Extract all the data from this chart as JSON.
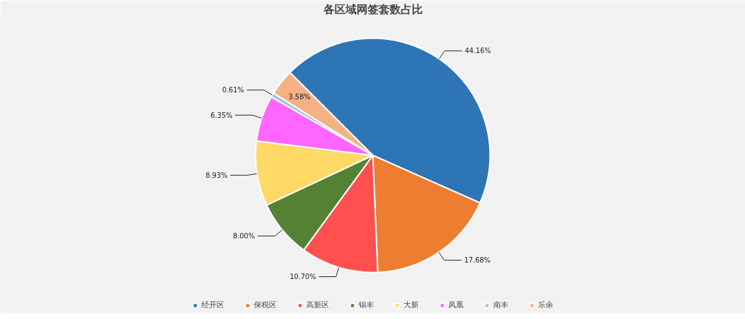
{
  "chart_data": {
    "type": "pie",
    "title": "各区域网签套数占比",
    "categories": [
      "经开区",
      "保税区",
      "高新区",
      "锦丰",
      "大新",
      "凤凰",
      "南丰",
      "乐余"
    ],
    "values": [
      44.16,
      17.68,
      10.7,
      8.0,
      8.93,
      6.35,
      0.61,
      3.58
    ],
    "value_labels": [
      "44.16%",
      "17.68%",
      "10.70%",
      "8.00%",
      "8.93%",
      "6.35%",
      "0.61%",
      "3.58%"
    ],
    "colors": [
      "#2e75b6",
      "#ed7d31",
      "#ff5050",
      "#548235",
      "#ffd966",
      "#ff66ff",
      "#9dc3e6",
      "#f4b183"
    ],
    "legend": "bottom"
  }
}
